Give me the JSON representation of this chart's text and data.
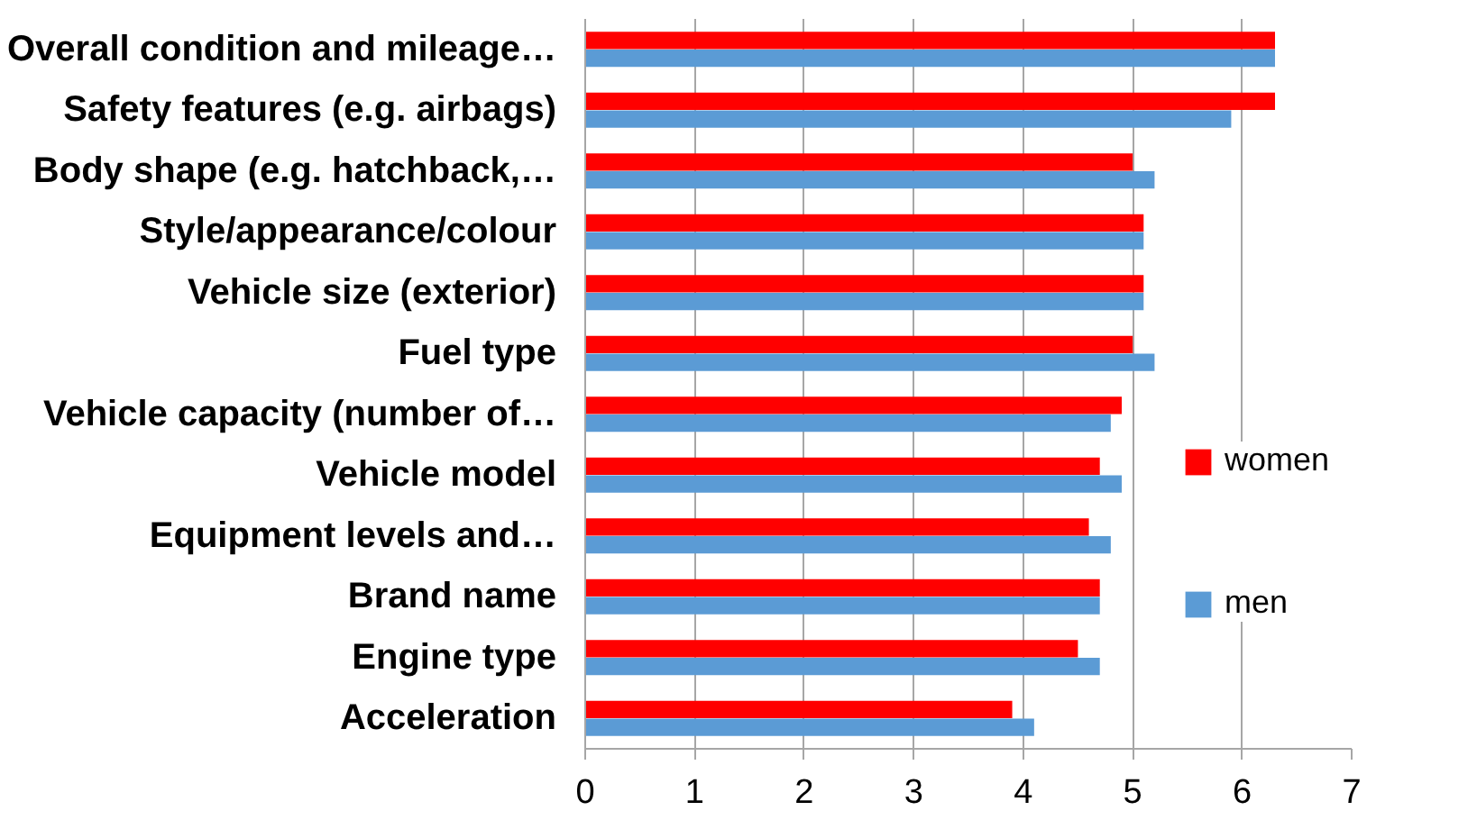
{
  "chart_data": {
    "type": "bar",
    "orientation": "horizontal",
    "categories": [
      "Overall condition and mileage…",
      "Safety features (e.g. airbags)",
      "Body shape (e.g. hatchback,…",
      "Style/appearance/colour",
      "Vehicle size (exterior)",
      "Fuel type",
      "Vehicle capacity (number of…",
      "Vehicle model",
      "Equipment levels and…",
      "Brand name",
      "Engine type",
      "Acceleration"
    ],
    "series": [
      {
        "name": "women",
        "color": "#ff0000",
        "values": [
          6.3,
          6.3,
          5.0,
          5.1,
          5.1,
          5.0,
          4.9,
          4.7,
          4.6,
          4.7,
          4.5,
          3.9
        ]
      },
      {
        "name": "men",
        "color": "#5b9bd5",
        "values": [
          6.3,
          5.9,
          5.2,
          5.1,
          5.1,
          5.2,
          4.8,
          4.9,
          4.8,
          4.7,
          4.7,
          4.1
        ]
      }
    ],
    "xlim": [
      0,
      7
    ],
    "xticks": [
      0,
      1,
      2,
      3,
      4,
      5,
      6,
      7
    ],
    "grid": "x",
    "legend": "right"
  }
}
